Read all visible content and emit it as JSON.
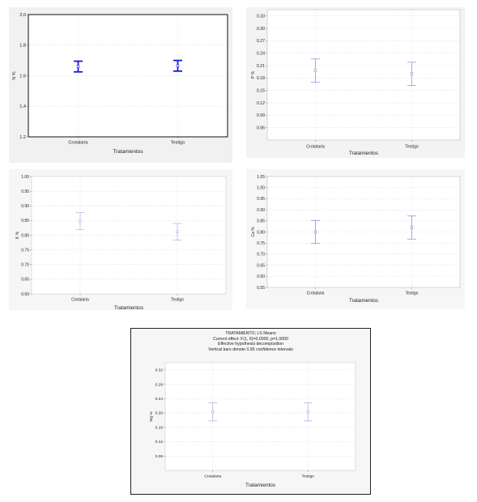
{
  "chart_data": [
    {
      "type": "scatter",
      "id": "n",
      "ylabel": "N %",
      "xlabel": "Tratamientos",
      "categories": [
        "Crotalaria",
        "Testigo"
      ],
      "means": [
        1.66,
        1.665
      ],
      "lower": [
        1.625,
        1.63
      ],
      "upper": [
        1.695,
        1.7
      ],
      "ylim": [
        1.2,
        2.0
      ],
      "yticks": [
        "1.2",
        "1.4",
        "1.6",
        "1.8",
        "2.0"
      ],
      "grid": true,
      "color": "#1a1adb"
    },
    {
      "type": "scatter",
      "id": "p",
      "ylabel": "P %",
      "xlabel": "Tratamientos",
      "categories": [
        "Crotalaria",
        "Testigo"
      ],
      "means": [
        0.198,
        0.19
      ],
      "lower": [
        0.17,
        0.162
      ],
      "upper": [
        0.226,
        0.218
      ],
      "ylim": [
        0.03,
        0.345
      ],
      "yticks": [
        "0.06",
        "0.09",
        "0.12",
        "0.15",
        "0.18",
        "0.21",
        "0.24",
        "0.27",
        "0.30",
        "0.33"
      ],
      "grid": true,
      "color": "#8a8ad8"
    },
    {
      "type": "scatter",
      "id": "k",
      "ylabel": "K %",
      "xlabel": "Tratamientos",
      "categories": [
        "Crotalaria",
        "Testigo"
      ],
      "means": [
        0.848,
        0.812
      ],
      "lower": [
        0.82,
        0.783
      ],
      "upper": [
        0.877,
        0.84
      ],
      "ylim": [
        0.6,
        1.0
      ],
      "yticks": [
        "0.60",
        "0.65",
        "0.70",
        "0.75",
        "0.80",
        "0.85",
        "0.90",
        "0.95",
        "1.00"
      ],
      "grid": true,
      "color": "#b0b0e4"
    },
    {
      "type": "scatter",
      "id": "ca",
      "ylabel": "Ca %",
      "xlabel": "Tratamientos",
      "categories": [
        "Crotalaria",
        "Testigo"
      ],
      "means": [
        0.8,
        0.82
      ],
      "lower": [
        0.748,
        0.768
      ],
      "upper": [
        0.852,
        0.872
      ],
      "ylim": [
        0.55,
        1.05
      ],
      "yticks": [
        "0.55",
        "0.60",
        "0.65",
        "0.70",
        "0.75",
        "0.80",
        "0.85",
        "0.90",
        "0.95",
        "1.00",
        "1.05"
      ],
      "grid": true,
      "color": "#8585d8"
    },
    {
      "type": "scatter",
      "id": "mg",
      "title": "TRATAMIENTO; LS Means",
      "subtitle_lines": [
        "Current effect: F(1, 6)=0.0000, p=1.0000",
        "Effective hypothesis decomposition",
        "Vertical bars denote 0.95 confidence intervals"
      ],
      "ylabel": "Mg %",
      "xlabel": "Tratamientos",
      "categories": [
        "Crotalaria",
        "Testigo"
      ],
      "means": [
        0.203,
        0.203
      ],
      "lower": [
        0.178,
        0.178
      ],
      "upper": [
        0.228,
        0.228
      ],
      "ylim": [
        0.04,
        0.34
      ],
      "yticks": [
        "0.08",
        "0.12",
        "0.16",
        "0.20",
        "0.24",
        "0.28",
        "0.32"
      ],
      "grid": true,
      "color": "#a8a8e0"
    }
  ]
}
